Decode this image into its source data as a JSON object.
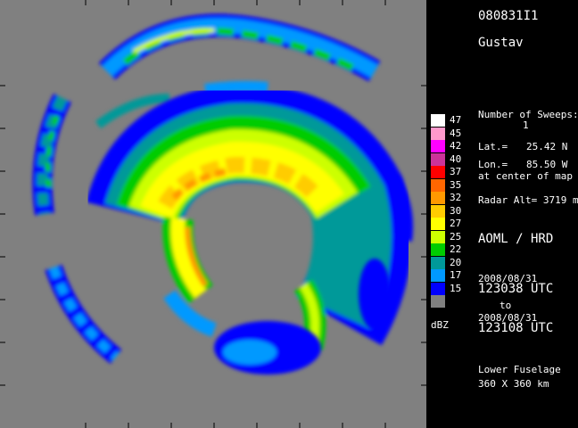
{
  "flight_id": "080831I1",
  "storm_name": "Gustav",
  "sweeps_label": "Number of Sweeps:",
  "sweeps_value": "1",
  "lat_label": "Lat.=",
  "lat_value": "25.42 N",
  "lon_label": "Lon.=",
  "lon_value": "85.50 W",
  "center_note": "at center of map",
  "radar_alt": "Radar Alt= 3719 m",
  "organization": "AOML / HRD",
  "start_date": "2008/08/31",
  "start_time": "123038 UTC",
  "to_label": "to",
  "end_date": "2008/08/31",
  "end_time": "123108 UTC",
  "radar_type": "Lower Fuselage",
  "map_size": "360 X 360 km",
  "legend": {
    "unit": "dBZ",
    "levels": [
      {
        "label": "47",
        "color": "#ffffff"
      },
      {
        "label": "45",
        "color": "#ff99cc"
      },
      {
        "label": "42",
        "color": "#ff00ff"
      },
      {
        "label": "40",
        "color": "#cc3399"
      },
      {
        "label": "37",
        "color": "#ff0000"
      },
      {
        "label": "35",
        "color": "#ff6600"
      },
      {
        "label": "32",
        "color": "#ff9900"
      },
      {
        "label": "30",
        "color": "#ffcc00"
      },
      {
        "label": "27",
        "color": "#ffff00"
      },
      {
        "label": "25",
        "color": "#ccff00"
      },
      {
        "label": "22",
        "color": "#00cc00"
      },
      {
        "label": "20",
        "color": "#009999"
      },
      {
        "label": "17",
        "color": "#0099ff"
      },
      {
        "label": "15",
        "color": "#0000ff"
      },
      {
        "label": "",
        "color": "#808080"
      }
    ]
  }
}
